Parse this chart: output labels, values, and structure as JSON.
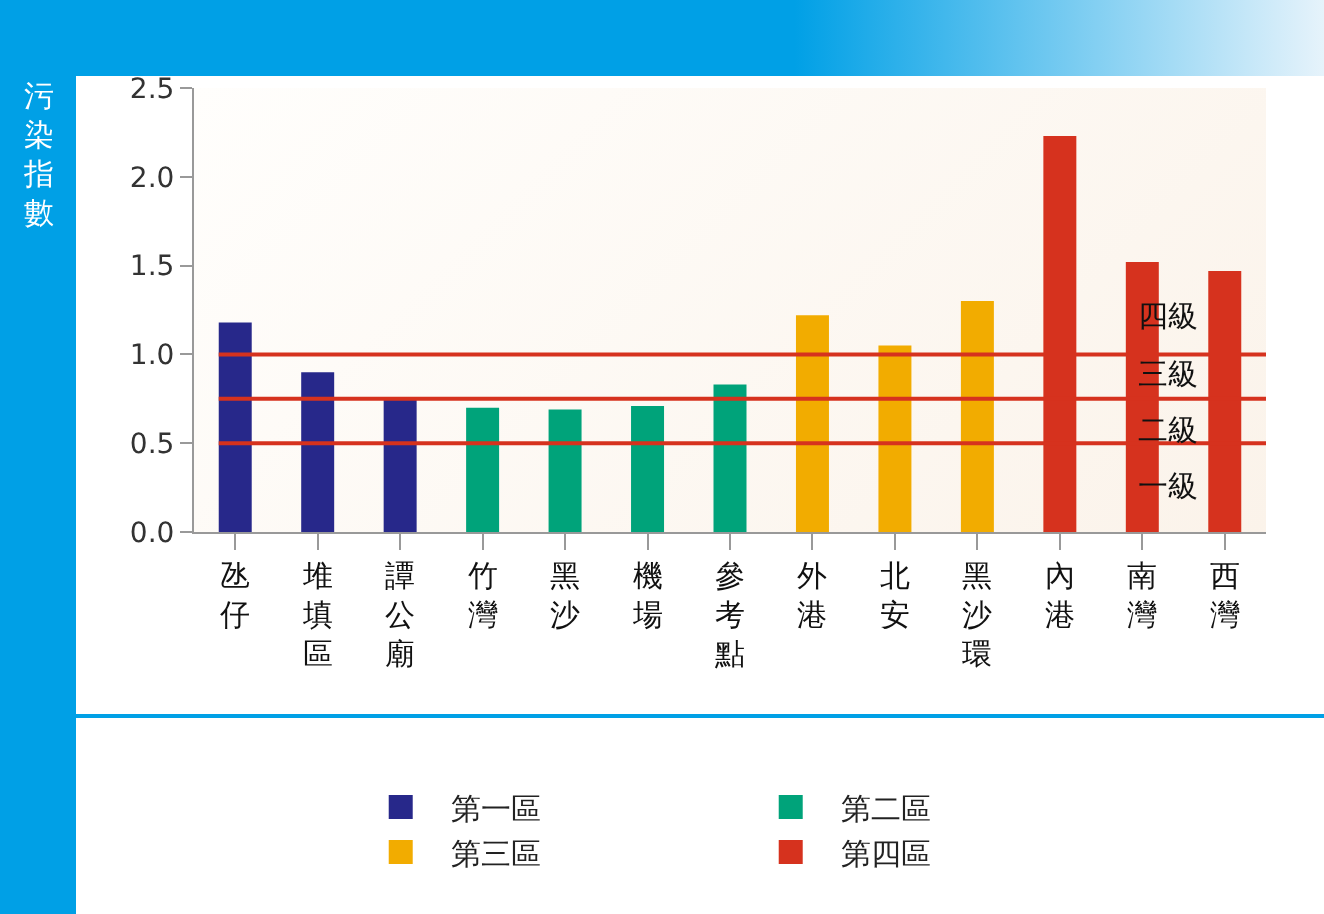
{
  "chart_data": {
    "type": "bar",
    "ylabel": "污染指數",
    "categories": [
      "氹仔",
      "堆填區",
      "譚公廟",
      "竹灣",
      "黑沙",
      "機場",
      "參考點",
      "外港",
      "北安",
      "黑沙環",
      "內港",
      "南灣",
      "西灣"
    ],
    "series": [
      {
        "name": "第一區",
        "color": "#27288a",
        "values": [
          1.18,
          0.9,
          0.76,
          null,
          null,
          null,
          null,
          null,
          null,
          null,
          null,
          null,
          null
        ]
      },
      {
        "name": "第二區",
        "color": "#00a37a",
        "values": [
          null,
          null,
          null,
          0.7,
          0.69,
          0.71,
          0.83,
          null,
          null,
          null,
          null,
          null,
          null
        ]
      },
      {
        "name": "第三區",
        "color": "#f2ac00",
        "values": [
          null,
          null,
          null,
          null,
          null,
          null,
          null,
          1.22,
          1.05,
          1.3,
          null,
          null,
          null
        ]
      },
      {
        "name": "第四區",
        "color": "#d6321e",
        "values": [
          null,
          null,
          null,
          null,
          null,
          null,
          null,
          null,
          null,
          null,
          2.23,
          1.52,
          1.47
        ]
      }
    ],
    "ylim": [
      0,
      2.5
    ],
    "yticks": [
      {
        "value": 0,
        "label": "0.0"
      },
      {
        "value": 0.5,
        "label": "0.5"
      },
      {
        "value": 1,
        "label": "1.0"
      },
      {
        "value": 1.5,
        "label": "1.5"
      },
      {
        "value": 2,
        "label": "2.0"
      },
      {
        "value": 2.5,
        "label": "2.5"
      }
    ],
    "ref_lines": [
      {
        "axis": "y",
        "value": 1.0,
        "color": "#d6321e"
      },
      {
        "axis": "y",
        "value": 0.75,
        "color": "#d6321e"
      },
      {
        "axis": "y",
        "value": 0.5,
        "color": "#d6321e"
      }
    ],
    "annotations": [
      {
        "text": "四級",
        "y": 1.22
      },
      {
        "text": "三級",
        "y": 0.89
      },
      {
        "text": "二級",
        "y": 0.57
      },
      {
        "text": "一級",
        "y": 0.26
      }
    ],
    "grid": false,
    "legend": "bottom"
  }
}
